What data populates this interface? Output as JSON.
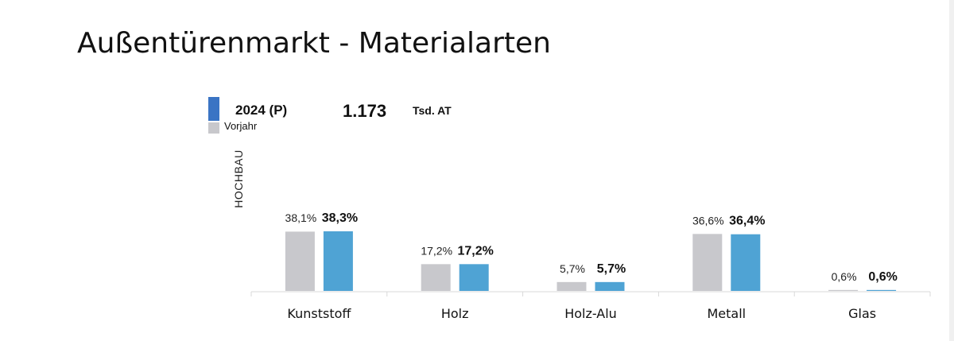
{
  "slide": {
    "title": "Außentürenmarkt - Materialarten"
  },
  "legend": {
    "current_label": "2024 (P)",
    "previous_label": "Vorjahr",
    "total_value": "1.173",
    "total_unit": "Tsd. AT"
  },
  "segment_label": "HOCHBAU",
  "colors": {
    "current": "#4fa3d4",
    "current_legend": "#3a74c4",
    "previous": "#c8c8cc",
    "axis": "#d8d8d8"
  },
  "chart_data": {
    "type": "bar",
    "categories": [
      "Kunststoff",
      "Holz",
      "Holz-Alu",
      "Metall",
      "Glas"
    ],
    "series": [
      {
        "name": "Vorjahr",
        "values": [
          38.1,
          17.2,
          5.7,
          36.6,
          0.6
        ],
        "labels": [
          "38,1%",
          "17,2%",
          "5,7%",
          "36,6%",
          "0,6%"
        ]
      },
      {
        "name": "2024 (P)",
        "values": [
          38.3,
          17.2,
          5.7,
          36.4,
          0.6
        ],
        "labels": [
          "38,3%",
          "17,2%",
          "5,7%",
          "36,4%",
          "0,6%"
        ]
      }
    ],
    "ylim": [
      0,
      38.3
    ],
    "grid": false,
    "legend_position": "top-left"
  }
}
